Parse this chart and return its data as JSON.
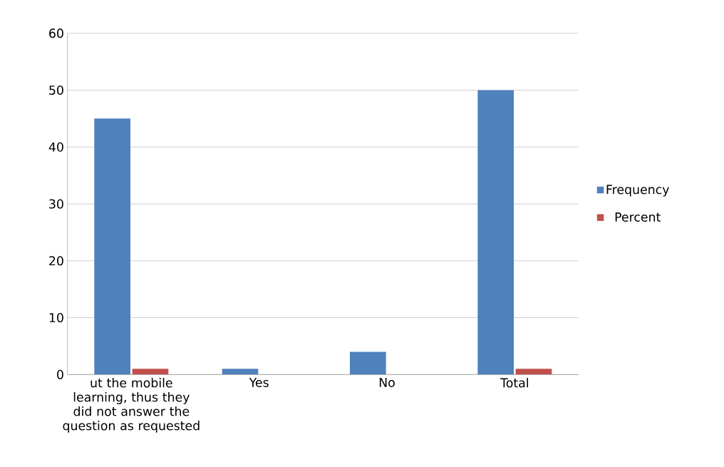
{
  "chart_data": {
    "type": "bar",
    "categories": [
      "ut the mobile learning, thus they did not answer the question as requested",
      "Yes",
      "No",
      "Total"
    ],
    "series": [
      {
        "name": "Frequency",
        "color": "#4f81bd",
        "values": [
          45,
          1,
          4,
          50
        ]
      },
      {
        "name": "Percent",
        "color": "#c0504d",
        "values": [
          1,
          0,
          0,
          1
        ]
      }
    ],
    "ylim": [
      0,
      60
    ],
    "yticks": [
      0,
      10,
      20,
      30,
      40,
      50,
      60
    ],
    "grid": "y",
    "legend": "right"
  }
}
